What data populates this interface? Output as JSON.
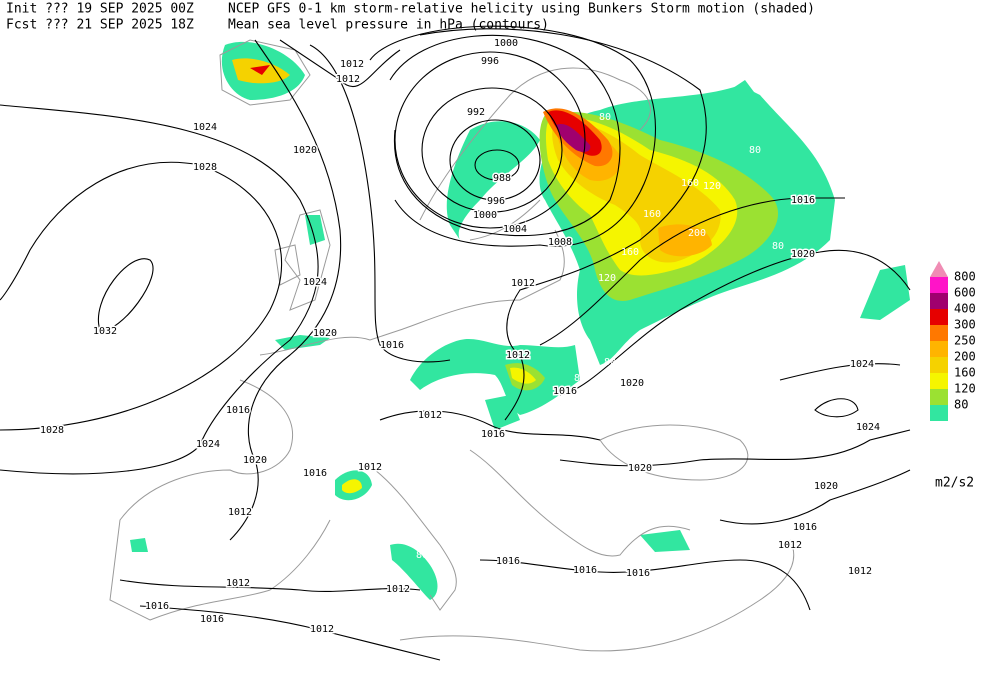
{
  "header": {
    "init_line": "Init  ??? 19 SEP 2025 00Z",
    "fcst_line": "Fcst ??? 21 SEP 2025 18Z",
    "title_line1": "NCEP GFS 0-1 km storm-relative helicity using Bunkers Storm motion (shaded)",
    "title_line2": "Mean sea level pressure in hPa (contours)"
  },
  "legend": {
    "items": [
      {
        "label": "800",
        "color": "#ff14c8"
      },
      {
        "label": "600",
        "color": "#a0006e"
      },
      {
        "label": "400",
        "color": "#e60000"
      },
      {
        "label": "300",
        "color": "#ff7800"
      },
      {
        "label": "250",
        "color": "#ffb400"
      },
      {
        "label": "200",
        "color": "#f5d200"
      },
      {
        "label": "160",
        "color": "#f5f500"
      },
      {
        "label": "120",
        "color": "#9be132"
      },
      {
        "label": "80",
        "color": "#32e6a0"
      }
    ],
    "overflow_color": "#f08cb4",
    "unit": "m2/s2"
  },
  "isobar_labels": [
    "1012",
    "1012",
    "1000",
    "996",
    "992",
    "988",
    "996",
    "1000",
    "1004",
    "1008",
    "1024",
    "1020",
    "1028",
    "1024",
    "1032",
    "1020",
    "1016",
    "1012",
    "1016",
    "1020",
    "1012",
    "1016",
    "1020",
    "1016",
    "1012",
    "1016",
    "1028",
    "1024",
    "1020",
    "1016",
    "1012",
    "1020",
    "1012",
    "1012",
    "1012",
    "1016",
    "1016",
    "1016",
    "1016",
    "1016",
    "1012",
    "1024",
    "1024",
    "1020",
    "1016",
    "1012",
    "1012"
  ],
  "helicity_labels": [
    "160",
    "120",
    "160",
    "200",
    "160",
    "120",
    "80",
    "80",
    "80",
    "80",
    "80",
    "80",
    "80"
  ]
}
